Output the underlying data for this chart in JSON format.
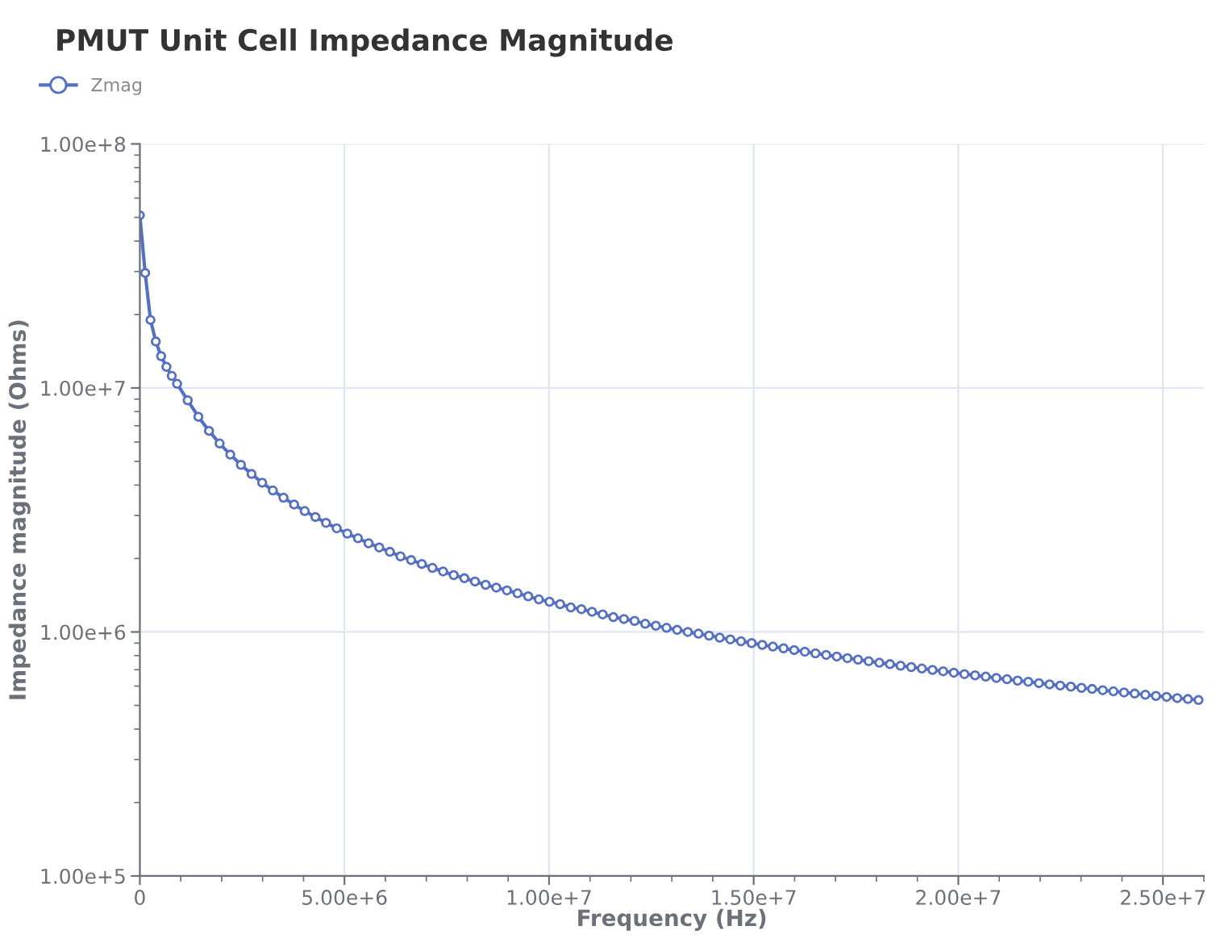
{
  "chart_data": {
    "type": "line",
    "title": "PMUT Unit Cell Impedance Magnitude",
    "xlabel": "Frequency (Hz)",
    "ylabel": "Impedance magnitude (Ohms)",
    "x": [
      0,
      130000,
      260000,
      390000,
      520000,
      650000,
      780000,
      910000,
      1170000,
      1430000,
      1690000,
      1950000,
      2210000,
      2470000,
      2730000,
      2990000,
      3250000,
      3510000,
      3770000,
      4030000,
      4290000,
      4550000,
      4810000,
      5070000,
      5330000,
      5590000,
      5850000,
      6110000,
      6370000,
      6630000,
      6890000,
      7150000,
      7410000,
      7670000,
      7930000,
      8190000,
      8450000,
      8710000,
      8970000,
      9230000,
      9490000,
      9750000,
      10010000,
      10270000,
      10530000,
      10790000,
      11050000,
      11310000,
      11570000,
      11830000,
      12090000,
      12350000,
      12610000,
      12870000,
      13130000,
      13390000,
      13650000,
      13910000,
      14170000,
      14430000,
      14690000,
      14950000,
      15210000,
      15470000,
      15730000,
      15990000,
      16250000,
      16510000,
      16770000,
      17030000,
      17290000,
      17550000,
      17810000,
      18070000,
      18330000,
      18590000,
      18850000,
      19110000,
      19370000,
      19630000,
      19890000,
      20150000,
      20410000,
      20670000,
      20930000,
      21190000,
      21450000,
      21710000,
      21970000,
      22230000,
      22490000,
      22750000,
      23010000,
      23270000,
      23530000,
      23790000,
      24050000,
      24310000,
      24570000,
      24830000,
      25090000,
      25350000,
      25610000,
      25870000
    ],
    "series": [
      {
        "name": "Zmag",
        "color": "#5470c6",
        "values": [
          51000000,
          29600000,
          19000000,
          15500000,
          13500000,
          12200000,
          11200000,
          10400000,
          8900000,
          7620000,
          6670000,
          5920000,
          5330000,
          4840000,
          4440000,
          4090000,
          3800000,
          3550000,
          3330000,
          3130000,
          2960000,
          2800000,
          2660000,
          2530000,
          2420000,
          2310000,
          2220000,
          2130000,
          2040000,
          1970000,
          1900000,
          1830000,
          1770000,
          1710000,
          1660000,
          1610000,
          1560000,
          1520000,
          1480000,
          1440000,
          1400000,
          1360000,
          1330000,
          1300000,
          1260000,
          1240000,
          1210000,
          1180000,
          1150000,
          1130000,
          1110000,
          1080000,
          1060000,
          1040000,
          1020000,
          1000000,
          984000,
          966000,
          948000,
          932000,
          916000,
          900000,
          885000,
          871000,
          857000,
          843000,
          830000,
          817000,
          805000,
          793000,
          781000,
          770000,
          759000,
          748000,
          738000,
          727000,
          718000,
          708000,
          699000,
          690000,
          681000,
          672000,
          664000,
          656000,
          648000,
          640000,
          632000,
          625000,
          617000,
          610000,
          603000,
          597000,
          590000,
          584000,
          577000,
          571000,
          565000,
          559000,
          553000,
          547000,
          542000,
          536000,
          531000,
          526000
        ]
      }
    ],
    "log": "y",
    "xlim": [
      0,
      26000000
    ],
    "ylim": [
      100000,
      100000000
    ],
    "xticks": [
      0,
      {
        "value": 5000000,
        "label": "5.00e+6"
      },
      {
        "value": 10000000,
        "label": "1.00e+7"
      },
      {
        "value": 15000000,
        "label": "1.50e+7"
      },
      {
        "value": 20000000,
        "label": "2.00e+7"
      },
      {
        "value": 25000000,
        "label": "2.50e+7"
      }
    ],
    "yticks": [
      {
        "value": 100000,
        "label": "1.00e+5"
      },
      {
        "value": 1000000,
        "label": "1.00e+6"
      },
      {
        "value": 10000000,
        "label": "1.00e+7"
      },
      {
        "value": 100000000,
        "label": "1.00e+8"
      }
    ],
    "grid": true,
    "legend": "top left",
    "marker": "circle",
    "line_style": "solid"
  }
}
